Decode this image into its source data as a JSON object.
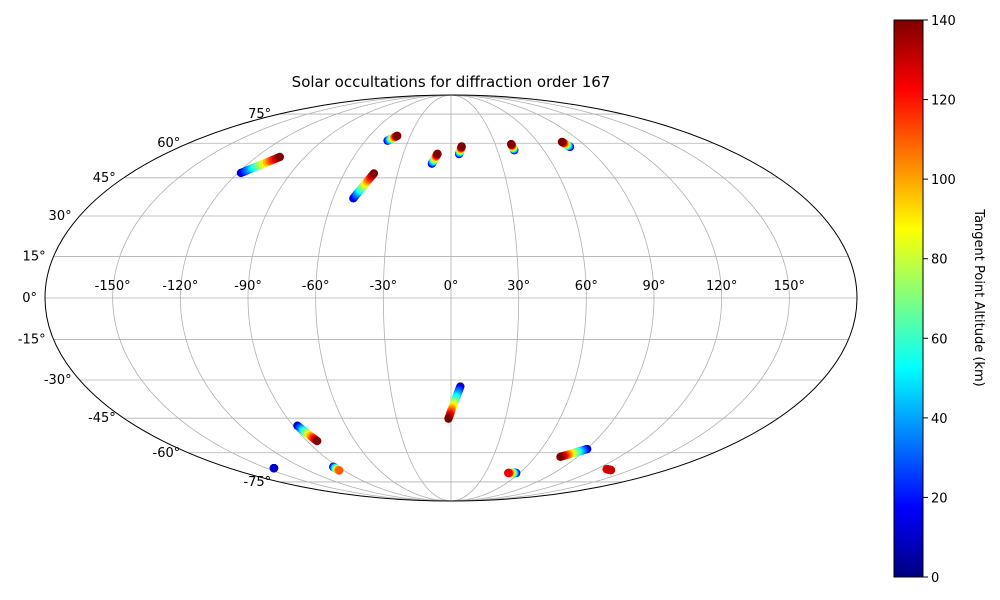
{
  "chart_data": {
    "type": "scatter",
    "projection": "mollweide",
    "title": "Solar occultations for diffraction order 167",
    "lon_ticks": [
      "-150°",
      "-120°",
      "-90°",
      "-60°",
      "-30°",
      "0°",
      "30°",
      "60°",
      "90°",
      "120°",
      "150°"
    ],
    "lon_tick_values": [
      -150,
      -120,
      -90,
      -60,
      -30,
      0,
      30,
      60,
      90,
      120,
      150
    ],
    "lat_ticks": [
      "75°",
      "60°",
      "45°",
      "30°",
      "15°",
      "0°",
      "-15°",
      "-30°",
      "-45°",
      "-60°",
      "-75°"
    ],
    "lat_tick_values": [
      75,
      60,
      45,
      30,
      15,
      0,
      -15,
      -30,
      -45,
      -60,
      -75
    ],
    "grid": true,
    "colorbar": {
      "label": "Tangent Point Altitude (km)",
      "colormap": "jet",
      "range": [
        0,
        140
      ],
      "ticks": [
        "0",
        "20",
        "40",
        "60",
        "80",
        "100",
        "120",
        "140"
      ],
      "tick_values": [
        0,
        20,
        40,
        60,
        80,
        100,
        120,
        140
      ]
    },
    "series": [
      {
        "lon_start": -118.2,
        "lat_start": 47.0,
        "lon_end": -105.5,
        "lat_end": 53.8,
        "alt_start": 10,
        "alt_end": 140
      },
      {
        "lon_start": -44.5,
        "lat_start": 61.2,
        "lon_end": -39.6,
        "lat_end": 63.5,
        "alt_start": 10,
        "alt_end": 140
      },
      {
        "lon_start": -49.7,
        "lat_start": 36.8,
        "lon_end": -43.3,
        "lat_end": 46.8,
        "alt_start": 10,
        "alt_end": 140
      },
      {
        "lon_start": -11.3,
        "lat_start": 50.9,
        "lon_end": -8.5,
        "lat_end": 55.2,
        "alt_start": 10,
        "alt_end": 140
      },
      {
        "lon_start": 5.1,
        "lat_start": 55.1,
        "lon_end": 7.1,
        "lat_end": 58.5,
        "alt_start": 10,
        "alt_end": 140
      },
      {
        "lon_start": 40.9,
        "lat_start": 56.8,
        "lon_end": 40.9,
        "lat_end": 59.6,
        "alt_start": 10,
        "alt_end": 140
      },
      {
        "lon_start": 79.0,
        "lat_start": 58.3,
        "lon_end": 76.9,
        "lat_end": 60.6,
        "alt_start": 10,
        "alt_end": 140
      },
      {
        "lon_start": 4.6,
        "lat_start": -32.5,
        "lon_end": -1.4,
        "lat_end": -45.2,
        "alt_start": 10,
        "alt_end": 140
      },
      {
        "lon_start": -87.6,
        "lat_start": -48.1,
        "lon_end": -83.6,
        "lat_end": -54.7,
        "alt_start": 10,
        "alt_end": 140
      },
      {
        "lon_start": 90.4,
        "lat_start": -58.3,
        "lon_end": 77.9,
        "lat_end": -61.9,
        "alt_start": 10,
        "alt_end": 140
      },
      {
        "lon_start": -144.0,
        "lat_start": -67.5,
        "lon_end": -144.0,
        "lat_end": -67.5,
        "alt_start": 10,
        "alt_end": 10
      },
      {
        "lon_start": -94.0,
        "lat_start": -66.8,
        "lon_end": -94.0,
        "lat_end": -68.7,
        "alt_start": 10,
        "alt_end": 110
      },
      {
        "lon_start": 57.0,
        "lat_start": -70.0,
        "lon_end": 50.0,
        "lat_end": -70.0,
        "alt_start": 10,
        "alt_end": 125
      },
      {
        "lon_start": 128.3,
        "lat_start": -68.0,
        "lon_end": 133.8,
        "lat_end": -68.5,
        "alt_start": 125,
        "alt_end": 130
      }
    ]
  }
}
